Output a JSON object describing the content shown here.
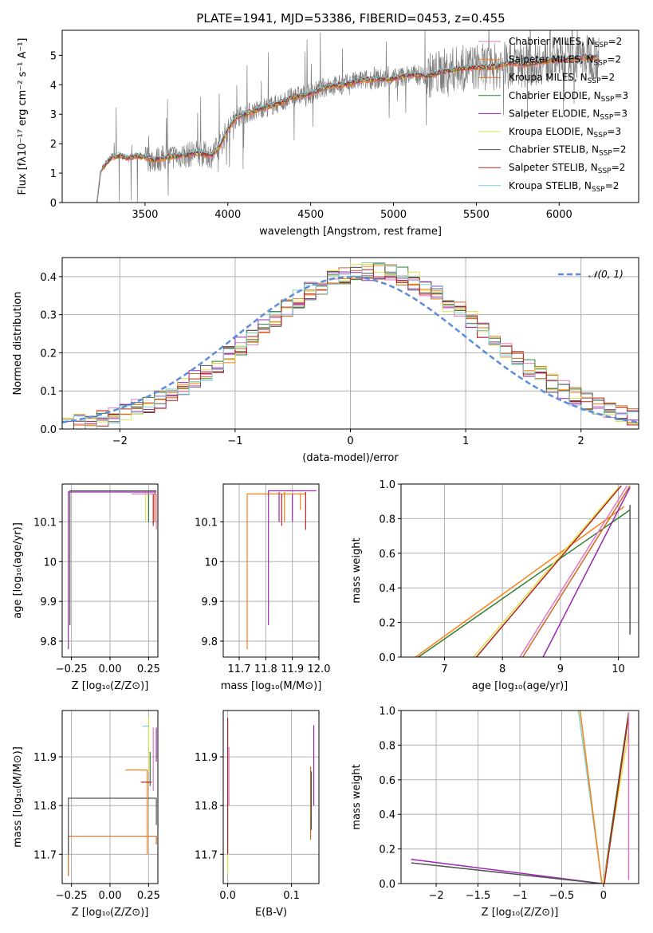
{
  "figure": {
    "title": "PLATE=1941, MJD=53386, FIBERID=0453, z=0.455"
  },
  "colors": {
    "chabrier_miles": "#e377c2",
    "salpeter_miles": "#ff7f0e",
    "kroupa_miles": "#d2691e",
    "chabrier_elodie": "#2e7d32",
    "salpeter_elodie": "#9c27b0",
    "kroupa_elodie": "#dde24c",
    "chabrier_stelib": "#555555",
    "salpeter_stelib": "#b22222",
    "kroupa_stelib": "#7fd1d9",
    "data": "#808080",
    "gaussian": "#5b8ddc",
    "grid": "#b0b0b0"
  },
  "legend_entries": [
    {
      "label": "Chabrier MILES, N",
      "sub": "SSP",
      "suffix": "=2",
      "color": "#e377c2"
    },
    {
      "label": "Salpeter MILES, N",
      "sub": "SSP",
      "suffix": "=2",
      "color": "#ff7f0e"
    },
    {
      "label": "Kroupa MILES, N",
      "sub": "SSP",
      "suffix": "=2",
      "color": "#d2691e"
    },
    {
      "label": "Chabrier ELODIE, N",
      "sub": "SSP",
      "suffix": "=3",
      "color": "#2e7d32"
    },
    {
      "label": "Salpeter ELODIE, N",
      "sub": "SSP",
      "suffix": "=3",
      "color": "#9c27b0"
    },
    {
      "label": "Kroupa ELODIE, N",
      "sub": "SSP",
      "suffix": "=3",
      "color": "#dde24c"
    },
    {
      "label": "Chabrier STELIB, N",
      "sub": "SSP",
      "suffix": "=2",
      "color": "#555555"
    },
    {
      "label": "Salpeter STELIB, N",
      "sub": "SSP",
      "suffix": "=2",
      "color": "#b22222"
    },
    {
      "label": "Kroupa STELIB, N",
      "sub": "SSP",
      "suffix": "=2",
      "color": "#7fd1d9"
    }
  ],
  "chart_data": [
    {
      "id": "spectrum",
      "type": "line",
      "xlabel": "wavelength [Angstrom, rest frame]",
      "ylabel": "Flux [fλ10⁻¹⁷ erg cm⁻² s⁻¹ A⁻¹]",
      "xlim": [
        3000,
        6480
      ],
      "ylim": [
        0,
        5.85
      ],
      "xticks": [
        3500,
        4000,
        4500,
        5000,
        5500,
        6000
      ],
      "yticks": [
        0,
        1,
        2,
        3,
        4,
        5
      ],
      "model_continuum": {
        "x": [
          3210,
          3230,
          3260,
          3300,
          3350,
          3400,
          3450,
          3500,
          3550,
          3600,
          3650,
          3700,
          3750,
          3800,
          3850,
          3900,
          3950,
          4000,
          4050,
          4100,
          4200,
          4300,
          4400,
          4500,
          4600,
          4700,
          4800,
          4900,
          5000,
          5100,
          5200,
          5300,
          5400,
          5500,
          5600,
          5700,
          5800,
          5900,
          6000,
          6100,
          6200,
          6240
        ],
        "y": [
          0,
          1.0,
          1.3,
          1.55,
          1.6,
          1.5,
          1.6,
          1.55,
          1.45,
          1.5,
          1.55,
          1.6,
          1.6,
          1.7,
          1.65,
          1.6,
          1.9,
          2.5,
          2.9,
          3.0,
          3.2,
          3.35,
          3.6,
          3.7,
          3.95,
          4.0,
          4.15,
          4.2,
          4.2,
          4.35,
          4.3,
          4.45,
          4.55,
          4.6,
          4.6,
          4.75,
          4.7,
          4.8,
          4.85,
          4.9,
          4.95,
          4.9
        ]
      },
      "legend_placement": "right"
    },
    {
      "id": "residuals",
      "type": "line",
      "xlabel": "(data-model)/error",
      "ylabel": "Normed distribution",
      "xlim": [
        -2.5,
        2.5
      ],
      "ylim": [
        0,
        0.45
      ],
      "xticks": [
        -2,
        -1,
        0,
        1,
        2
      ],
      "yticks": [
        0.0,
        0.1,
        0.2,
        0.3,
        0.4
      ],
      "legend": "𝒩(0, 1)",
      "legend_placement": "top-right",
      "gaussian": {
        "mu": 0,
        "sigma": 1
      }
    },
    {
      "id": "age-vs-Z",
      "type": "line",
      "xlabel": "Z [log₁₀(Z/Z⊙)]",
      "ylabel": "age  [log₁₀(age/yr)]",
      "xlim": [
        -0.31,
        0.31
      ],
      "ylim": [
        9.76,
        10.195
      ],
      "xticks": [
        -0.25,
        0.0,
        0.25
      ],
      "yticks": [
        9.8,
        9.9,
        10.0,
        10.1
      ]
    },
    {
      "id": "age-vs-mass",
      "type": "line",
      "xlabel": "mass [log₁₀(M/M⊙)]",
      "xlim": [
        11.64,
        12.0
      ],
      "ylim": [
        9.76,
        10.195
      ],
      "xticks": [
        11.7,
        11.8,
        11.9,
        12.0
      ],
      "yticks": [
        9.8,
        9.9,
        10.0,
        10.1
      ]
    },
    {
      "id": "weight-vs-age",
      "type": "line",
      "xlabel": "age  [log₁₀(age/yr)]",
      "ylabel": "mass weight",
      "xlim": [
        6.25,
        10.35
      ],
      "ylim": [
        0,
        1.0
      ],
      "xticks": [
        7,
        8,
        9,
        10
      ],
      "yticks": [
        0.0,
        0.2,
        0.4,
        0.6,
        0.8,
        1.0
      ]
    },
    {
      "id": "mass-vs-Z",
      "type": "line",
      "xlabel": "Z [log₁₀(Z/Z⊙)]",
      "ylabel": "mass [log₁₀(M/M⊙)]",
      "xlim": [
        -0.31,
        0.31
      ],
      "ylim": [
        11.64,
        11.995
      ],
      "xticks": [
        -0.25,
        0.0,
        0.25
      ],
      "yticks": [
        11.7,
        11.8,
        11.9
      ]
    },
    {
      "id": "mass-vs-ebv",
      "type": "line",
      "xlabel": "E(B-V)",
      "xlim": [
        -0.007,
        0.143
      ],
      "ylim": [
        11.64,
        11.995
      ],
      "xticks": [
        0.0,
        0.1
      ],
      "yticks": [
        11.7,
        11.8,
        11.9
      ]
    },
    {
      "id": "weight-vs-Z",
      "type": "line",
      "xlabel": "Z [log₁₀(Z/Z⊙)]",
      "ylabel": "mass weight",
      "xlim": [
        -2.42,
        0.42
      ],
      "ylim": [
        0,
        1.0
      ],
      "xticks": [
        -2.0,
        -1.5,
        -1.0,
        -0.5,
        0.0
      ],
      "yticks": [
        0.0,
        0.2,
        0.4,
        0.6,
        0.8,
        1.0
      ]
    }
  ]
}
